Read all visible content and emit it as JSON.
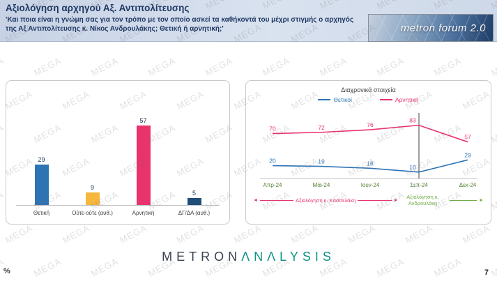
{
  "header": {
    "title": "Αξιολόγηση αρχηγού Αξ. Αντιπολίτευσης",
    "subtitle": "'Και ποια είναι η γνώμη σας για τον τρόπο με τον οποίο ασκεί τα καθήκοντά του μέχρι στιγμής ο αρχηγός της Αξ Αντιπολίτευσης κ. Νίκος Ανδρουλάκης; Θετική ή αρνητική;'",
    "logo_text": "metron forum 2.0"
  },
  "watermark": {
    "text": "MEGA"
  },
  "chart_data": [
    {
      "type": "bar",
      "categories": [
        "Θετική",
        "Ούτε-ούτε (αυθ.)",
        "Αρνητική",
        "ΔΓ/ΔΑ (αυθ.)"
      ],
      "values": [
        29,
        9,
        57,
        5
      ],
      "colors": [
        "#2e74b5",
        "#f5b73d",
        "#e8336d",
        "#1f4e79"
      ],
      "title": "",
      "xlabel": "",
      "ylabel": "",
      "ylim": [
        0,
        100
      ]
    },
    {
      "type": "line",
      "title": "Διαχρονικά στοιχεία",
      "x": [
        "Απρ-24",
        "Μάι-24",
        "Ιουν-24",
        "Σεπ-24",
        "Δεκ-24"
      ],
      "series": [
        {
          "name": "Θετικοί",
          "values": [
            20,
            19,
            16,
            10,
            29
          ],
          "color": "#2e74b5"
        },
        {
          "name": "Αρνητική",
          "values": [
            70,
            72,
            76,
            83,
            57
          ],
          "color": "#e8336d"
        }
      ],
      "ylim": [
        0,
        100
      ],
      "divider_x_index": 3,
      "x_label_color": "#538135",
      "legend_position": "top",
      "annotations": [
        {
          "text": "Αξιολόγηση κ. Κασσελάκη",
          "color": "#e8336d",
          "direction": "left"
        },
        {
          "text": "Αξιολόγηση κ. Ανδρουλάκη",
          "color": "#70ad47",
          "direction": "right"
        }
      ]
    }
  ],
  "footer": {
    "percent_label": "%",
    "page_number": "7",
    "brand_left": "METRON",
    "brand_right": "ΛNΛLYSIS"
  }
}
